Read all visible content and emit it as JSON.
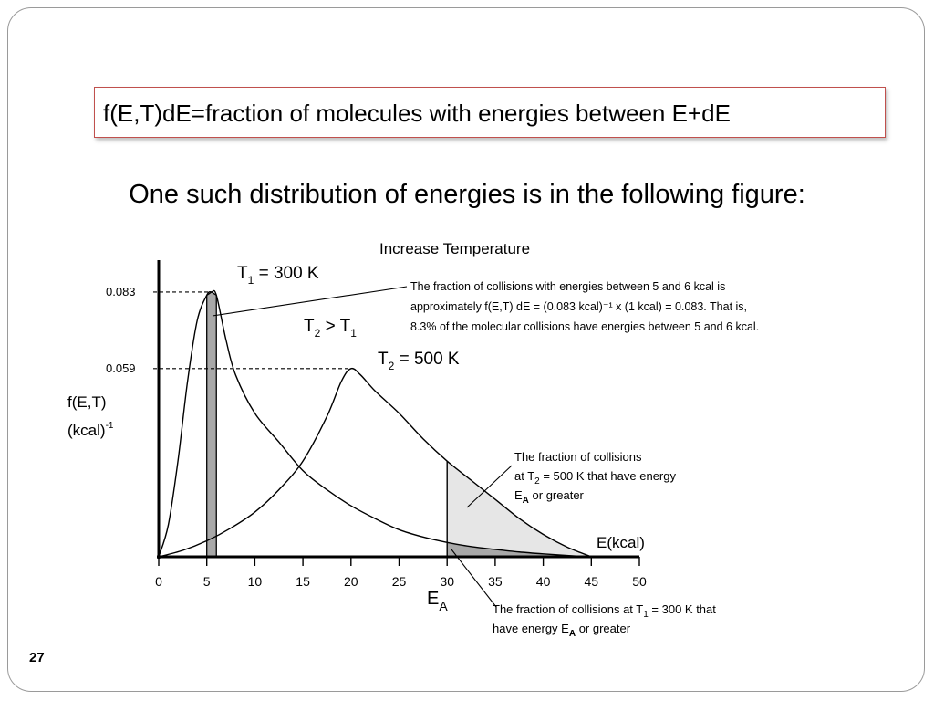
{
  "slide": {
    "title": "f(E,T)dE=fraction of molecules with energies between E+dE",
    "subtitle": "One such distribution of energies is in the following figure:",
    "page_number": "27"
  },
  "colors": {
    "title_border": "#c0504d",
    "frame_border": "#9a9a9a",
    "shaded_dark": "#a8a8a8",
    "shaded_light": "#e6e6e6",
    "curve": "#000000"
  },
  "chart_data": {
    "type": "line",
    "title": "Increase Temperature",
    "xlabel": "E(kcal)",
    "ylabel": "f(E,T)",
    "ylabel_unit": "(kcal)",
    "ylabel_unit_exp": "-1",
    "xlim": [
      0,
      50
    ],
    "ylim": [
      0,
      0.093
    ],
    "x_ticks": [
      0,
      5,
      10,
      15,
      20,
      25,
      30,
      35,
      40,
      45,
      50
    ],
    "y_ticks": [
      {
        "value": 0.083,
        "label": "0.083"
      },
      {
        "value": 0.059,
        "label": "0.059"
      }
    ],
    "grid": false,
    "series": [
      {
        "name": "T1 = 300 K",
        "peak_x": 5.5,
        "peak_y": 0.083,
        "points": [
          [
            0,
            0
          ],
          [
            1,
            0.01
          ],
          [
            2,
            0.03
          ],
          [
            3,
            0.055
          ],
          [
            4,
            0.074
          ],
          [
            5,
            0.082
          ],
          [
            5.5,
            0.083
          ],
          [
            6,
            0.082
          ],
          [
            7,
            0.068
          ],
          [
            8,
            0.057
          ],
          [
            10,
            0.045
          ],
          [
            12.5,
            0.036
          ],
          [
            15,
            0.027
          ],
          [
            17.5,
            0.021
          ],
          [
            20,
            0.016
          ],
          [
            22.5,
            0.012
          ],
          [
            25,
            0.0085
          ],
          [
            27.5,
            0.0062
          ],
          [
            30,
            0.0045
          ],
          [
            32.5,
            0.0032
          ],
          [
            35,
            0.0023
          ],
          [
            37.5,
            0.0015
          ],
          [
            40,
            0.0009
          ],
          [
            42.5,
            0.0004
          ],
          [
            45,
            0
          ]
        ]
      },
      {
        "name": "T2 = 500 K",
        "peak_x": 20,
        "peak_y": 0.059,
        "points": [
          [
            0,
            0
          ],
          [
            2.5,
            0.002
          ],
          [
            5,
            0.005
          ],
          [
            7.5,
            0.009
          ],
          [
            10,
            0.014
          ],
          [
            12.5,
            0.021
          ],
          [
            15,
            0.03
          ],
          [
            17.5,
            0.044
          ],
          [
            19,
            0.055
          ],
          [
            20,
            0.059
          ],
          [
            21,
            0.057
          ],
          [
            22.5,
            0.052
          ],
          [
            25,
            0.045
          ],
          [
            27.5,
            0.037
          ],
          [
            30,
            0.03
          ],
          [
            32.5,
            0.024
          ],
          [
            35,
            0.018
          ],
          [
            37.5,
            0.012
          ],
          [
            40,
            0.007
          ],
          [
            42.5,
            0.003
          ],
          [
            45,
            0
          ]
        ]
      }
    ],
    "highlight_band": {
      "x0": 5,
      "x1": 6
    },
    "activation_energy": {
      "value": 30,
      "label": "E",
      "subscript": "A"
    },
    "labels": {
      "t1": {
        "main": "T",
        "sub": "1",
        "rest": " = 300 K"
      },
      "t2_gt": {
        "main": "T",
        "sub": "2",
        "mid": " > T",
        "sub2": "1"
      },
      "t2": {
        "main": "T",
        "sub": "2",
        "rest": " = 500 K"
      }
    },
    "annotations": {
      "band_note": [
        "The fraction of collisions with energies between 5 and 6 kcal is",
        "approximately f(E,T) dE = (0.083 kcal)⁻¹ x (1 kcal) = 0.083. That is,",
        "8.3% of the molecular collisions have energies between 5 and 6 kcal."
      ],
      "t2_tail_note": {
        "line1": "The fraction of collisions",
        "line2_pre": "at T",
        "line2_sub": "2",
        "line2_post": " = 500 K that have energy",
        "line3_main": "E",
        "line3_sub": "A",
        "line3_post": " or greater"
      },
      "t1_tail_note": {
        "line1_pre": "The fraction of collisions at T",
        "line1_sub": "1",
        "line1_post": " = 300 K that",
        "line2_pre": "have energy E",
        "line2_sub": "A",
        "line2_post": " or greater"
      }
    }
  }
}
